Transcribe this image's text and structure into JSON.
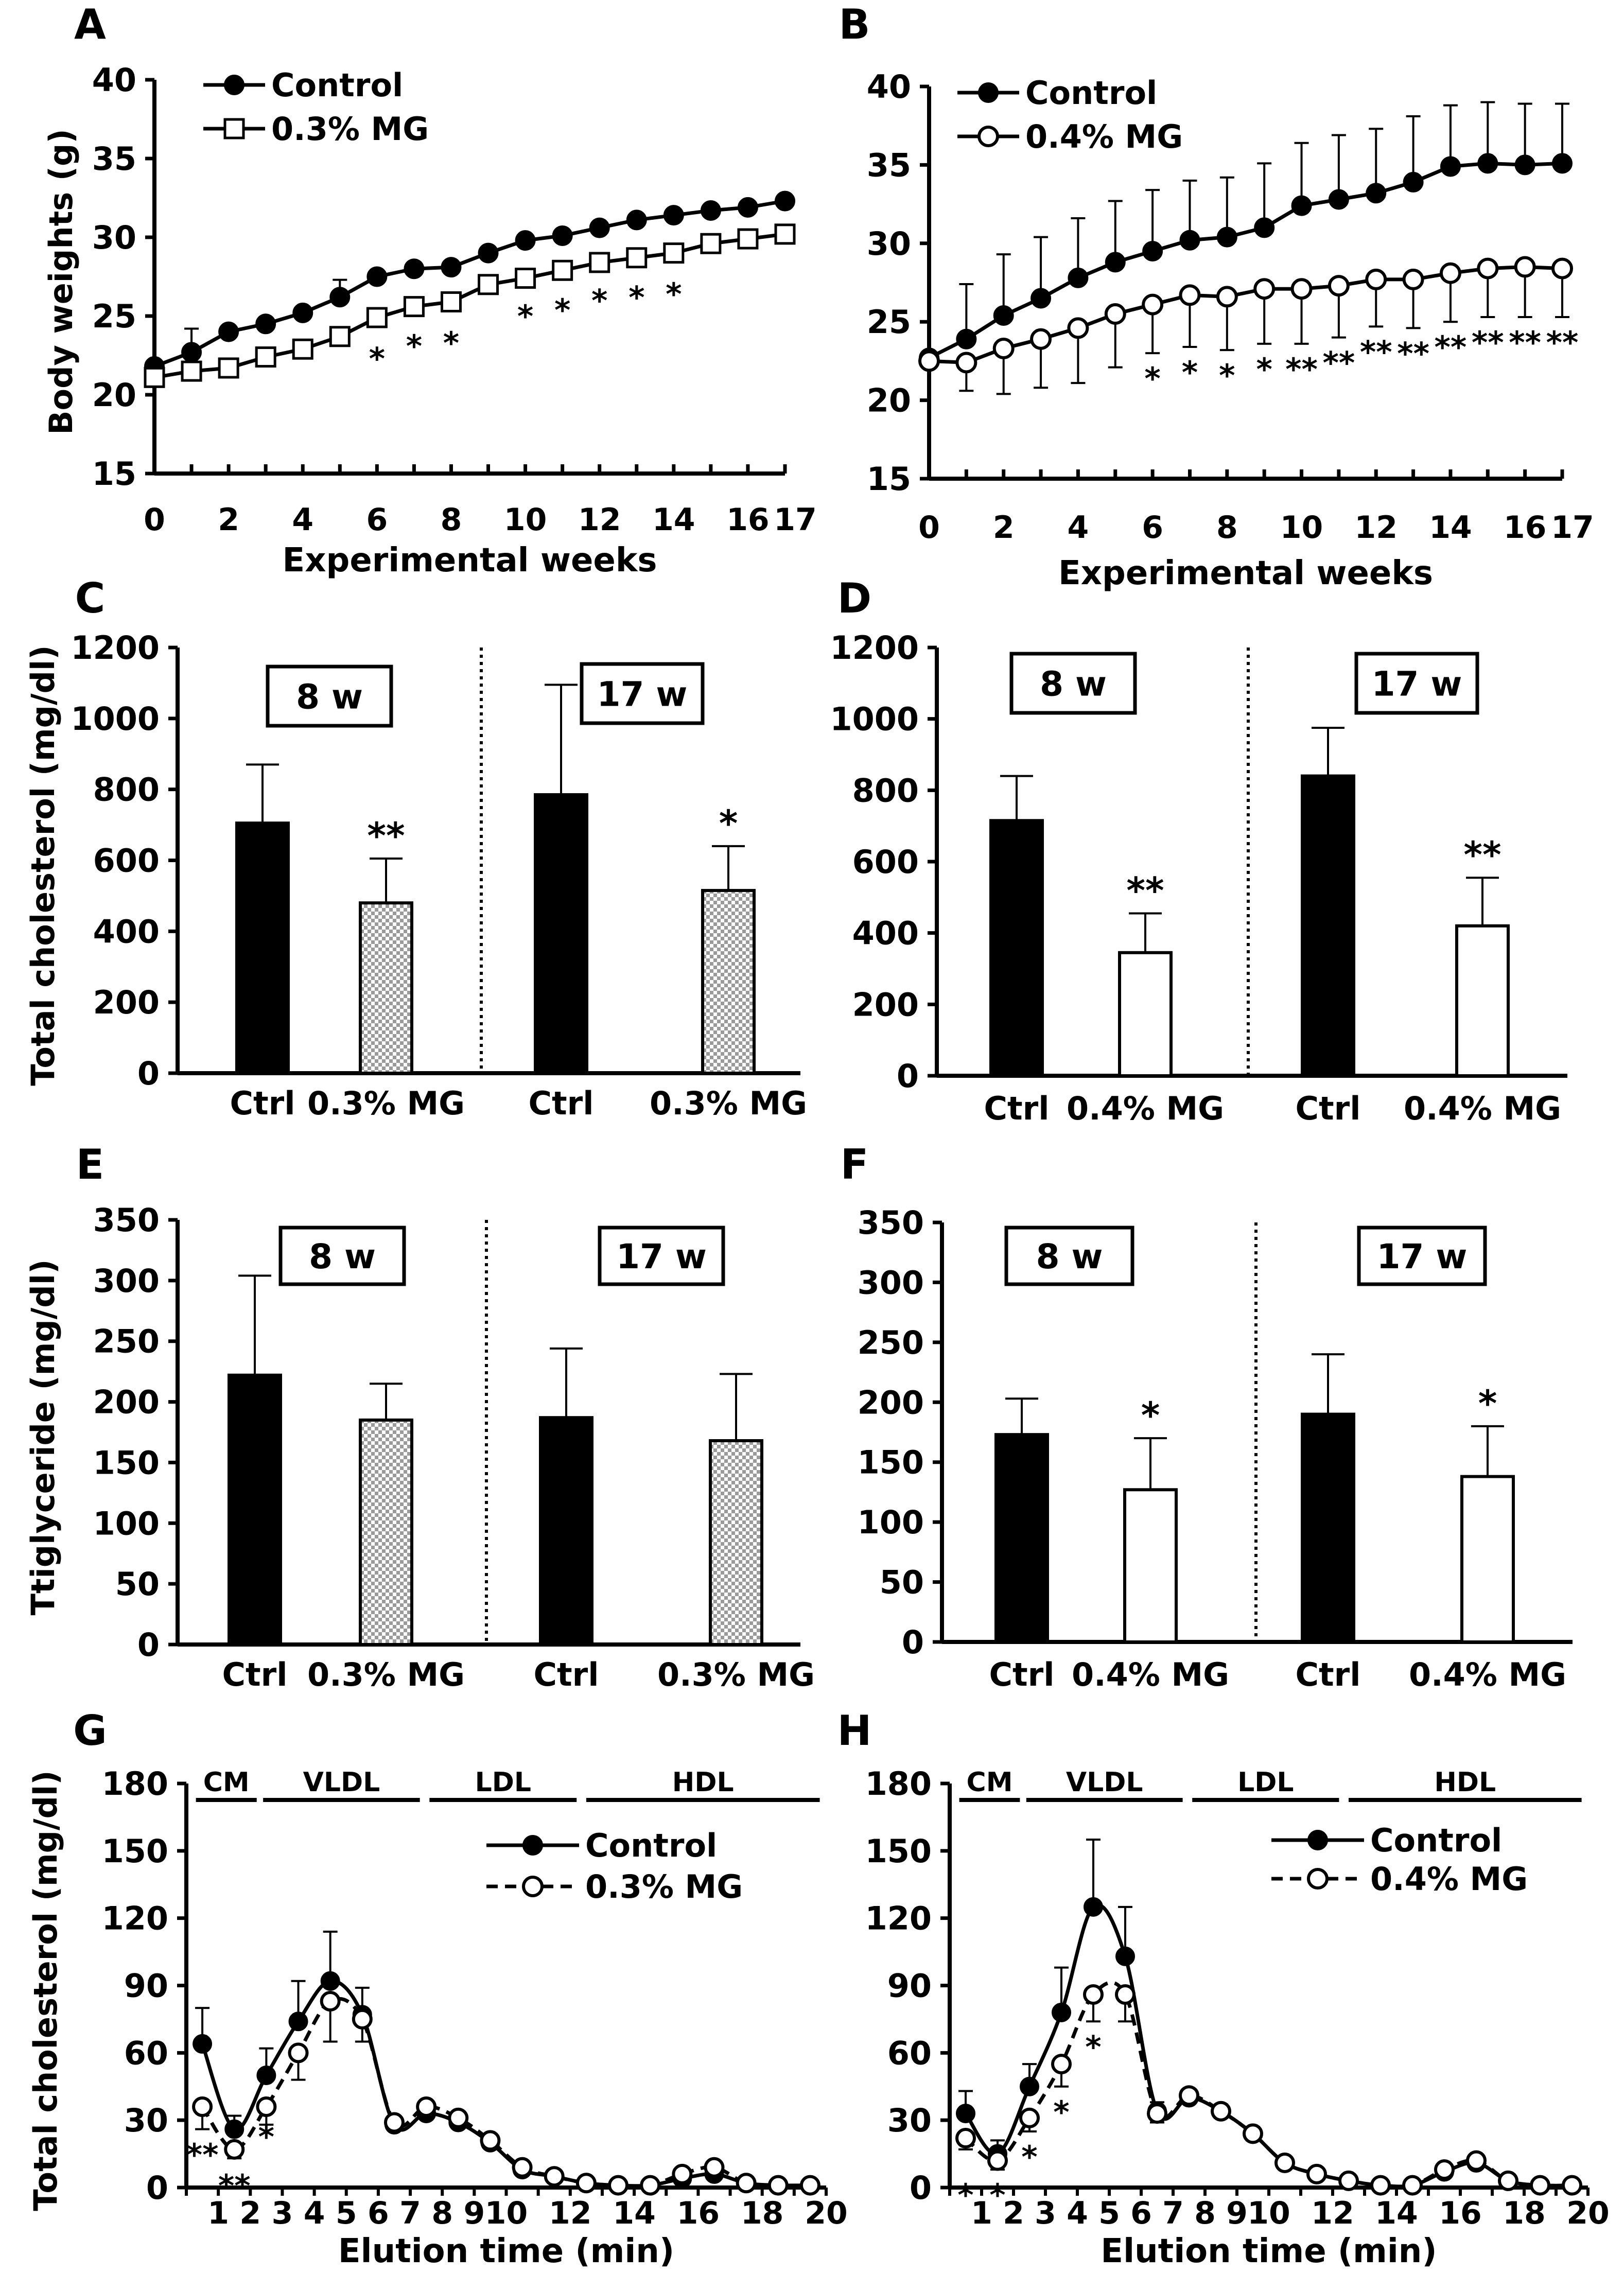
{
  "chart_data": [
    {
      "panel": "A",
      "type": "line",
      "xlabel": "Experimental weeks",
      "ylabel": "Body weights (g)",
      "ylim": [
        15,
        40
      ],
      "yticks": [
        15,
        20,
        25,
        30,
        35,
        40
      ],
      "xlim": [
        0,
        17
      ],
      "xticks": [
        0,
        2,
        4,
        6,
        8,
        10,
        12,
        14,
        16,
        17
      ],
      "legend": [
        "Control",
        "0.3% MG"
      ],
      "x": [
        0,
        1,
        2,
        3,
        4,
        5,
        6,
        7,
        8,
        9,
        10,
        11,
        12,
        13,
        14,
        15,
        16,
        17
      ],
      "series": [
        {
          "name": "Control",
          "marker": "filled-circle",
          "values": [
            21.8,
            22.7,
            24.0,
            24.5,
            25.2,
            26.2,
            27.5,
            28.0,
            28.1,
            29.0,
            29.8,
            30.1,
            30.6,
            31.1,
            31.4,
            31.7,
            31.9,
            32.3
          ],
          "err": [
            0.7,
            1.5,
            1.0,
            1.0,
            1.0,
            1.1,
            1.0,
            0.9,
            0.9,
            0.8,
            0.8,
            0.7,
            0.7,
            0.8,
            0.9,
            0.8,
            0.8,
            0.8
          ]
        },
        {
          "name": "0.3% MG",
          "marker": "open-square",
          "values": [
            21.1,
            21.5,
            21.7,
            22.4,
            22.9,
            23.7,
            24.9,
            25.6,
            25.9,
            27.0,
            27.4,
            27.9,
            28.4,
            28.7,
            29.0,
            29.6,
            29.9,
            30.2
          ],
          "err": [
            0.7,
            0.7,
            0.7,
            0.8,
            0.8,
            0.9,
            1.0,
            0.9,
            1.0,
            0.8,
            0.8,
            0.9,
            0.8,
            0.9,
            1.0,
            0.8,
            0.9,
            0.9
          ]
        }
      ],
      "significance": [
        {
          "x": 6,
          "label": "*"
        },
        {
          "x": 7,
          "label": "*"
        },
        {
          "x": 8,
          "label": "*"
        },
        {
          "x": 10,
          "label": "*"
        },
        {
          "x": 11,
          "label": "*"
        },
        {
          "x": 12,
          "label": "*"
        },
        {
          "x": 13,
          "label": "*"
        },
        {
          "x": 14,
          "label": "*"
        }
      ]
    },
    {
      "panel": "B",
      "type": "line",
      "xlabel": "Experimental weeks",
      "ylabel": "",
      "ylim": [
        15,
        40
      ],
      "yticks": [
        15,
        20,
        25,
        30,
        35,
        40
      ],
      "xlim": [
        0,
        17
      ],
      "xticks": [
        0,
        2,
        4,
        6,
        8,
        10,
        12,
        14,
        16,
        17
      ],
      "legend": [
        "Control",
        "0.4% MG"
      ],
      "x": [
        0,
        1,
        2,
        3,
        4,
        5,
        6,
        7,
        8,
        9,
        10,
        11,
        12,
        13,
        14,
        15,
        16,
        17
      ],
      "series": [
        {
          "name": "Control",
          "marker": "filled-circle",
          "values": [
            22.7,
            23.9,
            25.4,
            26.5,
            27.8,
            28.8,
            29.5,
            30.2,
            30.4,
            31.0,
            32.4,
            32.8,
            33.2,
            33.9,
            34.9,
            35.1,
            35.0,
            35.1
          ],
          "err": [
            0.5,
            3.5,
            3.9,
            3.9,
            3.8,
            3.9,
            3.9,
            3.8,
            3.8,
            4.1,
            4.0,
            4.1,
            4.1,
            4.2,
            3.9,
            3.9,
            3.9,
            3.8
          ]
        },
        {
          "name": "0.4% MG",
          "marker": "open-circle",
          "values": [
            22.5,
            22.4,
            23.3,
            23.9,
            24.6,
            25.5,
            26.1,
            26.7,
            26.6,
            27.1,
            27.1,
            27.3,
            27.7,
            27.7,
            28.1,
            28.4,
            28.5,
            28.4
          ],
          "err": [
            0.5,
            1.8,
            2.9,
            3.1,
            3.5,
            3.4,
            3.1,
            3.3,
            3.4,
            3.5,
            3.5,
            3.3,
            3.0,
            3.1,
            3.1,
            3.1,
            3.2,
            3.1
          ]
        }
      ],
      "significance": [
        {
          "x": 6,
          "label": "*"
        },
        {
          "x": 7,
          "label": "*"
        },
        {
          "x": 8,
          "label": "*"
        },
        {
          "x": 9,
          "label": "*"
        },
        {
          "x": 10,
          "label": "**"
        },
        {
          "x": 11,
          "label": "**"
        },
        {
          "x": 12,
          "label": "**"
        },
        {
          "x": 13,
          "label": "**"
        },
        {
          "x": 14,
          "label": "**"
        },
        {
          "x": 15,
          "label": "**"
        },
        {
          "x": 16,
          "label": "**"
        },
        {
          "x": 17,
          "label": "**"
        }
      ]
    },
    {
      "panel": "C",
      "type": "bar",
      "ylabel": "Total cholesterol (mg/dl)",
      "ylim": [
        0,
        1200
      ],
      "yticks": [
        0,
        200,
        400,
        600,
        800,
        1000,
        1200
      ],
      "groups": [
        {
          "label": "8 w",
          "bars": [
            {
              "category": "Ctrl",
              "value": 705,
              "err": 165,
              "style": "black",
              "sig": ""
            },
            {
              "category": "0.3% MG",
              "value": 480,
              "err": 125,
              "style": "checkered",
              "sig": "**"
            }
          ]
        },
        {
          "label": "17 w",
          "bars": [
            {
              "category": "Ctrl",
              "value": 785,
              "err": 310,
              "style": "black",
              "sig": ""
            },
            {
              "category": "0.3% MG",
              "value": 515,
              "err": 125,
              "style": "checkered",
              "sig": "*"
            }
          ]
        }
      ]
    },
    {
      "panel": "D",
      "type": "bar",
      "ylabel": "",
      "ylim": [
        0,
        1200
      ],
      "yticks": [
        0,
        200,
        400,
        600,
        800,
        1000,
        1200
      ],
      "groups": [
        {
          "label": "8 w",
          "bars": [
            {
              "category": "Ctrl",
              "value": 715,
              "err": 125,
              "style": "black",
              "sig": ""
            },
            {
              "category": "0.4% MG",
              "value": 345,
              "err": 110,
              "style": "white",
              "sig": "**"
            }
          ]
        },
        {
          "label": "17 w",
          "bars": [
            {
              "category": "Ctrl",
              "value": 840,
              "err": 135,
              "style": "black",
              "sig": ""
            },
            {
              "category": "0.4% MG",
              "value": 420,
              "err": 135,
              "style": "white",
              "sig": "**"
            }
          ]
        }
      ]
    },
    {
      "panel": "E",
      "type": "bar",
      "ylabel": "Ttiglyceride (mg/dl)",
      "ylim": [
        0,
        350
      ],
      "yticks": [
        0,
        50,
        100,
        150,
        200,
        250,
        300,
        350
      ],
      "groups": [
        {
          "label": "8 w",
          "bars": [
            {
              "category": "Ctrl",
              "value": 222,
              "err": 82,
              "style": "black",
              "sig": ""
            },
            {
              "category": "0.3% MG",
              "value": 185,
              "err": 30,
              "style": "checkered",
              "sig": ""
            }
          ]
        },
        {
          "label": "17 w",
          "bars": [
            {
              "category": "Ctrl",
              "value": 187,
              "err": 57,
              "style": "black",
              "sig": ""
            },
            {
              "category": "0.3% MG",
              "value": 168,
              "err": 55,
              "style": "checkered",
              "sig": ""
            }
          ]
        }
      ]
    },
    {
      "panel": "F",
      "type": "bar",
      "ylabel": "",
      "ylim": [
        0,
        350
      ],
      "yticks": [
        0,
        50,
        100,
        150,
        200,
        250,
        300,
        350
      ],
      "groups": [
        {
          "label": "8 w",
          "bars": [
            {
              "category": "Ctrl",
              "value": 173,
              "err": 30,
              "style": "black",
              "sig": ""
            },
            {
              "category": "0.4% MG",
              "value": 127,
              "err": 43,
              "style": "white",
              "sig": "*"
            }
          ]
        },
        {
          "label": "17 w",
          "bars": [
            {
              "category": "Ctrl",
              "value": 190,
              "err": 50,
              "style": "black",
              "sig": ""
            },
            {
              "category": "0.4% MG",
              "value": 138,
              "err": 42,
              "style": "white",
              "sig": "*"
            }
          ]
        }
      ]
    },
    {
      "panel": "G",
      "type": "line",
      "xlabel": "Elution time (min)",
      "ylabel": "Total cholesterol (mg/dl)",
      "ylim": [
        0,
        180
      ],
      "yticks": [
        0,
        30,
        60,
        90,
        120,
        150,
        180
      ],
      "xlim": [
        0,
        20
      ],
      "xticks": [
        1,
        2,
        3,
        4,
        5,
        6,
        7,
        8,
        9,
        10,
        12,
        14,
        16,
        18,
        20
      ],
      "fractions": [
        {
          "label": "CM",
          "from": 0.3,
          "to": 2.2
        },
        {
          "label": "VLDL",
          "from": 2.4,
          "to": 7.3
        },
        {
          "label": "LDL",
          "from": 7.6,
          "to": 12.2
        },
        {
          "label": "HDL",
          "from": 12.5,
          "to": 19.8
        }
      ],
      "legend": [
        "Control",
        "0.3% MG"
      ],
      "series": [
        {
          "name": "Control",
          "line": "solid",
          "marker": "filled-circle",
          "x": [
            0.5,
            1.5,
            2.5,
            3.5,
            4.5,
            5.5,
            6.5,
            7.5,
            8.5,
            9.5,
            10.5,
            11.5,
            12.5,
            13.5,
            14.5,
            15.5,
            16.5,
            17.5,
            18.5,
            19.5
          ],
          "values": [
            64,
            26,
            50,
            74,
            92,
            77,
            28,
            33,
            29,
            20,
            8,
            5,
            2,
            1,
            1,
            4,
            6,
            2,
            1,
            1
          ],
          "err": [
            16,
            6,
            12,
            18,
            22,
            12,
            3,
            3,
            3,
            3,
            2,
            1,
            1,
            1,
            1,
            1,
            2,
            1,
            1,
            1
          ]
        },
        {
          "name": "0.3% MG",
          "line": "dashed",
          "marker": "open-circle",
          "x": [
            0.5,
            1.5,
            2.5,
            3.5,
            4.5,
            5.5,
            6.5,
            7.5,
            8.5,
            9.5,
            10.5,
            11.5,
            12.5,
            13.5,
            14.5,
            15.5,
            16.5,
            17.5,
            18.5,
            19.5
          ],
          "values": [
            36,
            17,
            36,
            60,
            83,
            75,
            29,
            36,
            31,
            21,
            9,
            5,
            2,
            1,
            1,
            6,
            9,
            2,
            1,
            1
          ],
          "err": [
            10,
            4,
            8,
            12,
            18,
            10,
            3,
            3,
            3,
            3,
            2,
            1,
            1,
            1,
            1,
            2,
            3,
            1,
            1,
            1
          ]
        }
      ],
      "significance": [
        {
          "x": 0.5,
          "label": "**"
        },
        {
          "x": 1.5,
          "label": "**"
        },
        {
          "x": 2.5,
          "label": "*"
        }
      ]
    },
    {
      "panel": "H",
      "type": "line",
      "xlabel": "Elution time (min)",
      "ylabel": "",
      "ylim": [
        0,
        180
      ],
      "yticks": [
        0,
        30,
        60,
        90,
        120,
        150,
        180
      ],
      "xlim": [
        0,
        20
      ],
      "xticks": [
        1,
        2,
        3,
        4,
        5,
        6,
        7,
        8,
        9,
        10,
        12,
        14,
        16,
        18,
        20
      ],
      "fractions": [
        {
          "label": "CM",
          "from": 0.3,
          "to": 2.2
        },
        {
          "label": "VLDL",
          "from": 2.4,
          "to": 7.3
        },
        {
          "label": "LDL",
          "from": 7.6,
          "to": 12.2
        },
        {
          "label": "HDL",
          "from": 12.5,
          "to": 19.8
        }
      ],
      "legend": [
        "Control",
        "0.4% MG"
      ],
      "series": [
        {
          "name": "Control",
          "line": "solid",
          "marker": "filled-circle",
          "x": [
            0.5,
            1.5,
            2.5,
            3.5,
            4.5,
            5.5,
            6.5,
            7.5,
            8.5,
            9.5,
            10.5,
            11.5,
            12.5,
            13.5,
            14.5,
            15.5,
            16.5,
            17.5,
            18.5,
            19.5
          ],
          "values": [
            33,
            15,
            45,
            78,
            125,
            103,
            34,
            40,
            34,
            24,
            11,
            6,
            3,
            1,
            1,
            7,
            11,
            3,
            1,
            1
          ],
          "err": [
            10,
            6,
            10,
            20,
            30,
            22,
            4,
            3,
            3,
            3,
            2,
            1,
            1,
            1,
            1,
            2,
            3,
            1,
            1,
            1
          ]
        },
        {
          "name": "0.4% MG",
          "line": "dashed",
          "marker": "open-circle",
          "x": [
            0.5,
            1.5,
            2.5,
            3.5,
            4.5,
            5.5,
            6.5,
            7.5,
            8.5,
            9.5,
            10.5,
            11.5,
            12.5,
            13.5,
            14.5,
            15.5,
            16.5,
            17.5,
            18.5,
            19.5
          ],
          "values": [
            22,
            12,
            31,
            55,
            86,
            86,
            33,
            41,
            34,
            24,
            11,
            6,
            3,
            1,
            1,
            8,
            12,
            3,
            1,
            1
          ],
          "err": [
            5,
            4,
            6,
            10,
            12,
            12,
            4,
            3,
            3,
            3,
            2,
            1,
            1,
            1,
            1,
            2,
            3,
            1,
            1,
            1
          ]
        }
      ],
      "significance": [
        {
          "x": 0.5,
          "label": "*"
        },
        {
          "x": 1.5,
          "label": "*"
        },
        {
          "x": 2.5,
          "label": "*"
        },
        {
          "x": 3.5,
          "label": "*"
        },
        {
          "x": 4.5,
          "label": "*"
        }
      ]
    }
  ]
}
